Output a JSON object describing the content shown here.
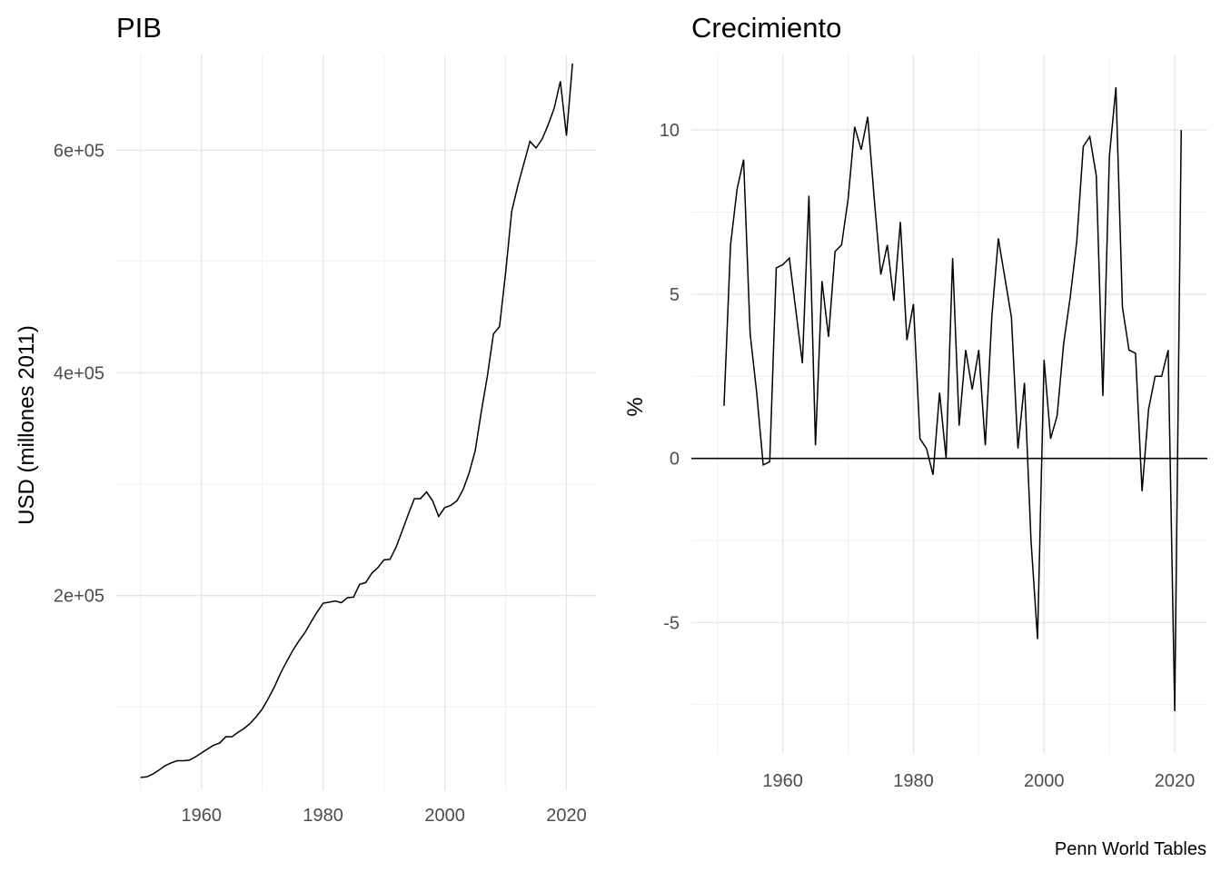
{
  "caption": "Penn World Tables",
  "chart_data": [
    {
      "type": "line",
      "title": "PIB",
      "xlabel": "",
      "ylabel": "USD (millones 2011)",
      "xlim": [
        1946,
        2025
      ],
      "ylim": [
        25000,
        686000
      ],
      "grid": true,
      "x_ticks": [
        1960,
        1980,
        2000,
        2020
      ],
      "x_tick_labels": [
        "1960",
        "1980",
        "2000",
        "2020"
      ],
      "y_ticks": [
        200000,
        400000,
        600000
      ],
      "y_tick_labels": [
        "2e+05",
        "4e+05",
        "6e+05"
      ],
      "line_color": "#000000",
      "x": [
        1950,
        1951,
        1952,
        1953,
        1954,
        1955,
        1956,
        1957,
        1958,
        1959,
        1960,
        1961,
        1962,
        1963,
        1964,
        1965,
        1966,
        1967,
        1968,
        1969,
        1970,
        1971,
        1972,
        1973,
        1974,
        1975,
        1976,
        1977,
        1978,
        1979,
        1980,
        1981,
        1982,
        1983,
        1984,
        1985,
        1986,
        1987,
        1988,
        1989,
        1990,
        1991,
        1992,
        1993,
        1994,
        1995,
        1996,
        1997,
        1998,
        1999,
        2000,
        2001,
        2002,
        2003,
        2004,
        2005,
        2006,
        2007,
        2008,
        2009,
        2010,
        2011,
        2012,
        2013,
        2014,
        2015,
        2016,
        2017,
        2018,
        2019,
        2020,
        2021
      ],
      "y": [
        36500,
        37000,
        39500,
        43000,
        47000,
        49500,
        51500,
        51500,
        52000,
        55000,
        58500,
        62000,
        65500,
        67500,
        73000,
        73000,
        77000,
        80500,
        85000,
        91000,
        98000,
        107500,
        118000,
        130000,
        140500,
        150500,
        159000,
        166500,
        176000,
        185000,
        193000,
        194000,
        195000,
        193500,
        198000,
        198500,
        210000,
        211500,
        220000,
        225000,
        232000,
        232500,
        243500,
        258000,
        273000,
        287000,
        287000,
        293000,
        285000,
        271000,
        279000,
        281000,
        285000,
        295000,
        310000,
        330000,
        365000,
        397000,
        435000,
        441500,
        490000,
        545000,
        568000,
        588000,
        608000,
        602000,
        610000,
        623000,
        638000,
        662000,
        613000,
        678000
      ]
    },
    {
      "type": "line",
      "title": "Crecimiento",
      "xlabel": "",
      "ylabel": "%",
      "xlim": [
        1946,
        2025
      ],
      "ylim": [
        -9,
        12.3
      ],
      "grid": true,
      "x_ticks": [
        1960,
        1980,
        2000,
        2020
      ],
      "x_tick_labels": [
        "1960",
        "1980",
        "2000",
        "2020"
      ],
      "y_ticks": [
        -5,
        0,
        5,
        10
      ],
      "y_tick_labels": [
        "-5",
        "0",
        "5",
        "10"
      ],
      "reference_line": 0,
      "line_color": "#000000",
      "x": [
        1951,
        1952,
        1953,
        1954,
        1955,
        1956,
        1957,
        1958,
        1959,
        1960,
        1961,
        1962,
        1963,
        1964,
        1965,
        1966,
        1967,
        1968,
        1969,
        1970,
        1971,
        1972,
        1973,
        1974,
        1975,
        1976,
        1977,
        1978,
        1979,
        1980,
        1981,
        1982,
        1983,
        1984,
        1985,
        1986,
        1987,
        1988,
        1989,
        1990,
        1991,
        1992,
        1993,
        1994,
        1995,
        1996,
        1997,
        1998,
        1999,
        2000,
        2001,
        2002,
        2003,
        2004,
        2005,
        2006,
        2007,
        2008,
        2009,
        2010,
        2011,
        2012,
        2013,
        2014,
        2015,
        2016,
        2017,
        2018,
        2019,
        2020,
        2021
      ],
      "y": [
        1.6,
        6.5,
        8.2,
        9.1,
        3.8,
        2.0,
        -0.2,
        -0.1,
        5.8,
        5.9,
        6.1,
        4.5,
        2.9,
        8.0,
        0.4,
        5.4,
        3.7,
        6.3,
        6.5,
        7.9,
        10.1,
        9.4,
        10.4,
        7.9,
        5.6,
        6.5,
        4.8,
        7.2,
        3.6,
        4.7,
        0.6,
        0.3,
        -0.5,
        2.0,
        0.0,
        6.1,
        1.0,
        3.3,
        2.1,
        3.3,
        0.4,
        4.3,
        6.7,
        5.5,
        4.3,
        0.3,
        2.3,
        -2.5,
        -5.5,
        3.0,
        0.6,
        1.3,
        3.5,
        4.9,
        6.6,
        9.5,
        9.8,
        8.6,
        1.9,
        9.2,
        11.3,
        4.6,
        3.3,
        3.2,
        -1.0,
        1.5,
        2.5,
        2.5,
        3.3,
        -7.7,
        10.0
      ]
    }
  ]
}
